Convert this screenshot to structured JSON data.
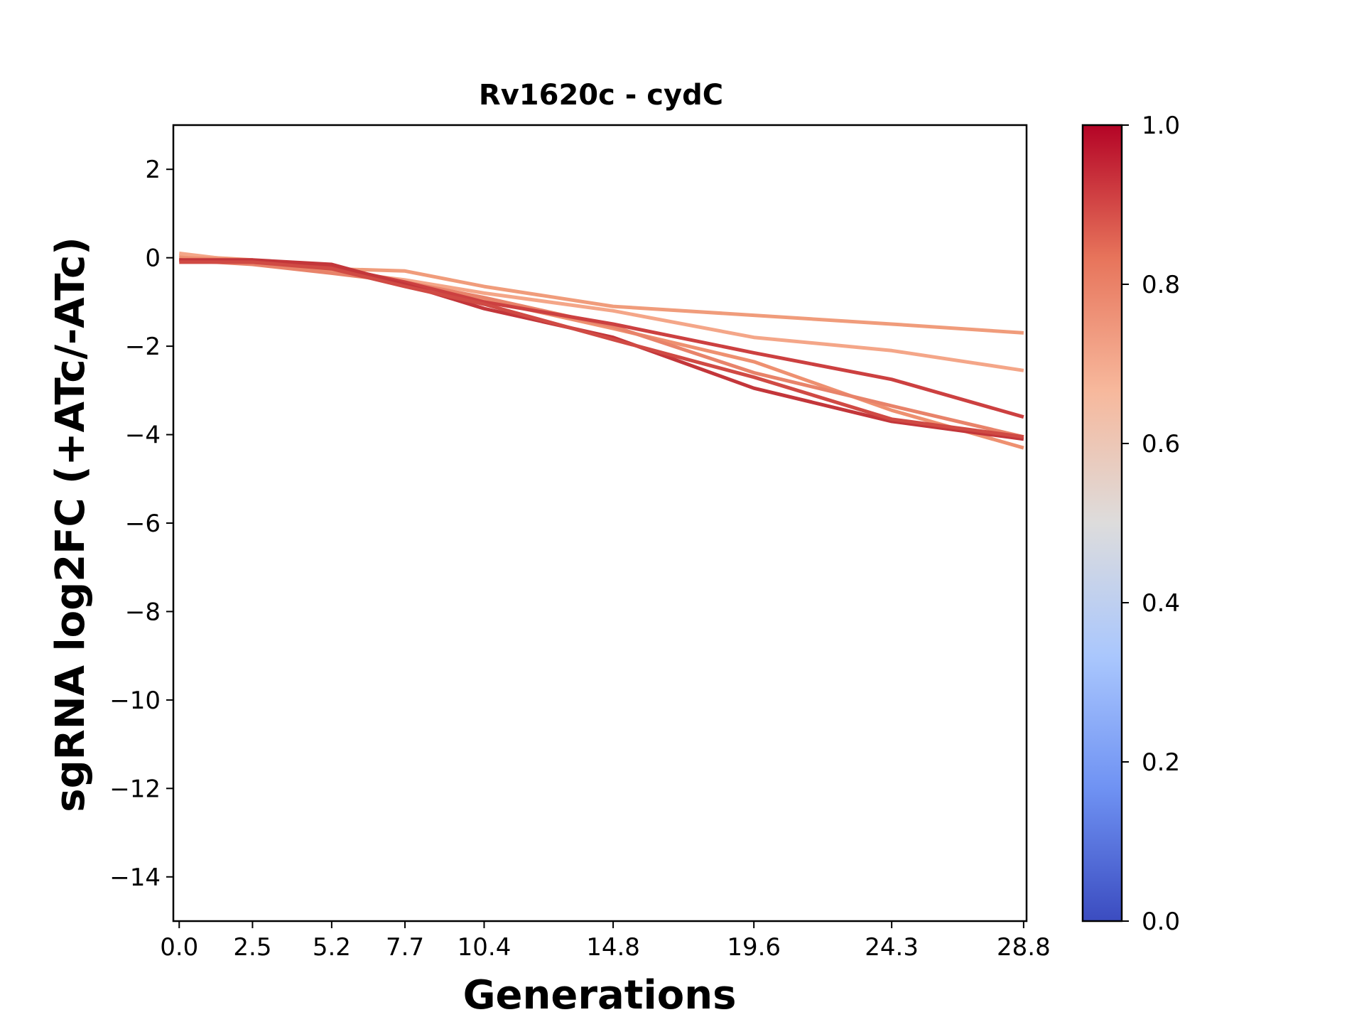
{
  "chart_data": {
    "type": "line",
    "title": "Rv1620c - cydC",
    "xlabel": "Generations",
    "ylabel": "sgRNA log2FC (+ATc/-ATc)",
    "x": [
      0.0,
      2.5,
      5.2,
      7.7,
      10.4,
      14.8,
      19.6,
      24.3,
      28.8
    ],
    "x_tick_labels": [
      "0.0",
      "2.5",
      "5.2",
      "7.7",
      "10.4",
      "14.8",
      "19.6",
      "24.3",
      "28.8"
    ],
    "xlim": [
      -0.2,
      28.9
    ],
    "ylim": [
      -15,
      3
    ],
    "y_ticks": [
      2,
      0,
      -2,
      -4,
      -6,
      -8,
      -10,
      -12,
      -14
    ],
    "y_tick_labels": [
      "2",
      "0",
      "−2",
      "−4",
      "−6",
      "−8",
      "−10",
      "−12",
      "−14"
    ],
    "grid": false,
    "series": [
      {
        "color_value": 0.72,
        "color": "#f09c7b",
        "values": [
          0.05,
          -0.05,
          -0.25,
          -0.3,
          -0.65,
          -1.1,
          -1.3,
          -1.5,
          -1.7
        ]
      },
      {
        "color_value": 0.7,
        "color": "#f4a688",
        "values": [
          0.1,
          -0.1,
          -0.3,
          -0.5,
          -0.8,
          -1.2,
          -1.8,
          -2.1,
          -2.55
        ]
      },
      {
        "color_value": 0.74,
        "color": "#ee9070",
        "values": [
          0.0,
          -0.05,
          -0.3,
          -0.55,
          -0.95,
          -1.6,
          -2.35,
          -3.45,
          -4.3
        ]
      },
      {
        "color_value": 0.78,
        "color": "#e8836a",
        "values": [
          -0.05,
          -0.15,
          -0.35,
          -0.55,
          -0.9,
          -1.55,
          -2.6,
          -3.35,
          -4.05
        ]
      },
      {
        "color_value": 0.92,
        "color": "#cc4040",
        "values": [
          -0.05,
          -0.1,
          -0.2,
          -0.55,
          -1.0,
          -1.5,
          -2.15,
          -2.75,
          -3.6
        ]
      },
      {
        "color_value": 0.95,
        "color": "#c3363a",
        "values": [
          -0.05,
          -0.05,
          -0.15,
          -0.6,
          -1.15,
          -1.8,
          -2.95,
          -3.7,
          -4.1
        ]
      },
      {
        "color_value": 0.9,
        "color": "#d04a44",
        "values": [
          -0.1,
          -0.1,
          -0.25,
          -0.65,
          -1.05,
          -1.85,
          -2.7,
          -3.65,
          -4.05
        ]
      }
    ],
    "colorbar": {
      "min": 0.0,
      "max": 1.0,
      "ticks": [
        0.0,
        0.2,
        0.4,
        0.6,
        0.8,
        1.0
      ],
      "tick_labels": [
        "0.0",
        "0.2",
        "0.4",
        "0.6",
        "0.8",
        "1.0"
      ],
      "colormap": "coolwarm",
      "stops": [
        "#3b4cc0",
        "#6f92f3",
        "#aac7fd",
        "#dddcdc",
        "#f7b89c",
        "#e7745b",
        "#b40426"
      ]
    }
  }
}
